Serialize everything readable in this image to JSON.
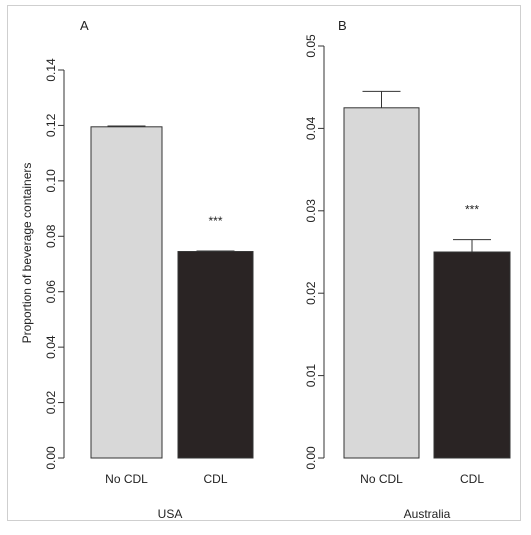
{
  "chart_data": [
    {
      "type": "bar",
      "panel": "A",
      "xlabel": "USA",
      "ylabel": "Proportion of beverage containers",
      "categories": [
        "No CDL",
        "CDL"
      ],
      "values": [
        0.1195,
        0.0745
      ],
      "errors": [
        0.0003,
        0.0002
      ],
      "colors": [
        "#d8d8d8",
        "#2a2424"
      ],
      "annotations": [
        "",
        "***"
      ],
      "ylim": [
        0,
        0.14
      ],
      "yticks": [
        "0.00",
        "0.02",
        "0.04",
        "0.06",
        "0.08",
        "0.10",
        "0.12",
        "0.14"
      ],
      "grid": false
    },
    {
      "type": "bar",
      "panel": "B",
      "xlabel": "Australia",
      "ylabel": "",
      "categories": [
        "No CDL",
        "CDL"
      ],
      "values": [
        0.0425,
        0.025
      ],
      "errors": [
        0.002,
        0.0015
      ],
      "colors": [
        "#d8d8d8",
        "#2a2424"
      ],
      "annotations": [
        "",
        "***"
      ],
      "ylim": [
        0,
        0.05
      ],
      "yticks": [
        "0.00",
        "0.01",
        "0.02",
        "0.03",
        "0.04",
        "0.05"
      ],
      "grid": false
    }
  ]
}
